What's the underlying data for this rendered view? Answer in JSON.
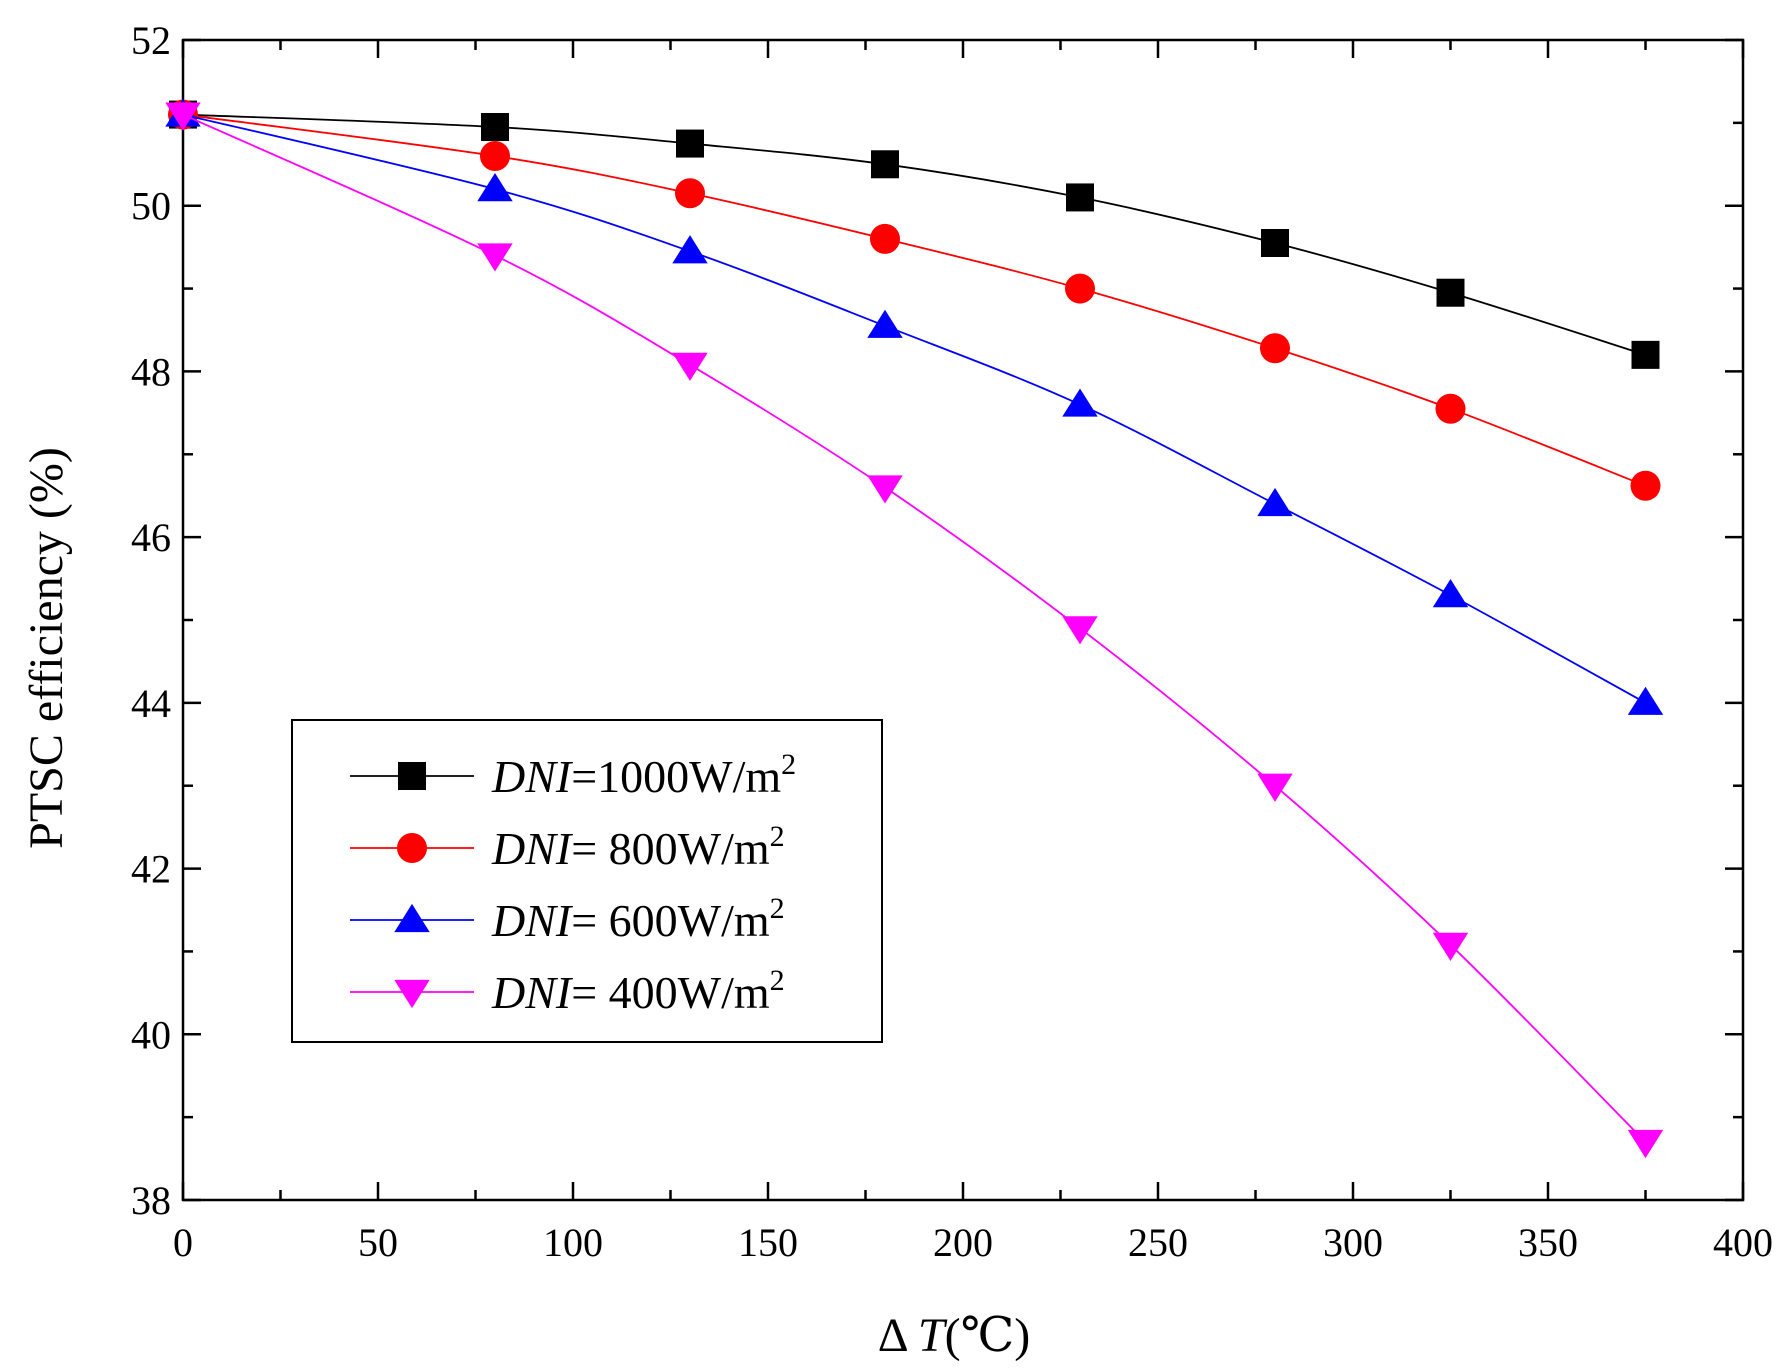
{
  "chart_data": {
    "type": "line",
    "title": "",
    "xlabel": {
      "prefix": "Δ ",
      "var": "T",
      "suffix": "(℃)"
    },
    "ylabel": "PTSC efficiency (%)",
    "xlim": [
      0,
      400
    ],
    "ylim": [
      38,
      52
    ],
    "xticks": [
      0,
      50,
      100,
      150,
      200,
      250,
      300,
      350,
      400
    ],
    "yticks": [
      38,
      40,
      42,
      44,
      46,
      48,
      50,
      52
    ],
    "x": [
      0,
      80,
      130,
      180,
      230,
      280,
      325,
      375
    ],
    "grid": false,
    "legend_location": "lower-left",
    "series": [
      {
        "name": "DNI=1000W/m2",
        "label_var": "DNI",
        "label_eq": "=1000W/m",
        "label_sup": "2",
        "color": "#000000",
        "marker": "square",
        "values": [
          51.1,
          50.95,
          50.75,
          50.5,
          50.1,
          49.55,
          48.95,
          48.2
        ]
      },
      {
        "name": "DNI= 800W/m2",
        "label_var": "DNI",
        "label_eq": "= 800W/m",
        "label_sup": "2",
        "color": "#ff0000",
        "marker": "circle",
        "values": [
          51.1,
          50.6,
          50.15,
          49.6,
          49.0,
          48.28,
          47.55,
          46.62
        ]
      },
      {
        "name": "DNI= 600W/m2",
        "label_var": "DNI",
        "label_eq": "= 600W/m",
        "label_sup": "2",
        "color": "#0000ff",
        "marker": "triangle-up",
        "values": [
          51.1,
          50.2,
          49.45,
          48.55,
          47.6,
          46.4,
          45.3,
          44.0
        ]
      },
      {
        "name": "DNI= 400W/m2",
        "label_var": "DNI",
        "label_eq": "= 400W/m",
        "label_sup": "2",
        "color": "#ff00ff",
        "marker": "triangle-down",
        "values": [
          51.1,
          49.4,
          48.08,
          46.6,
          44.9,
          43.0,
          41.08,
          38.7
        ]
      }
    ]
  }
}
